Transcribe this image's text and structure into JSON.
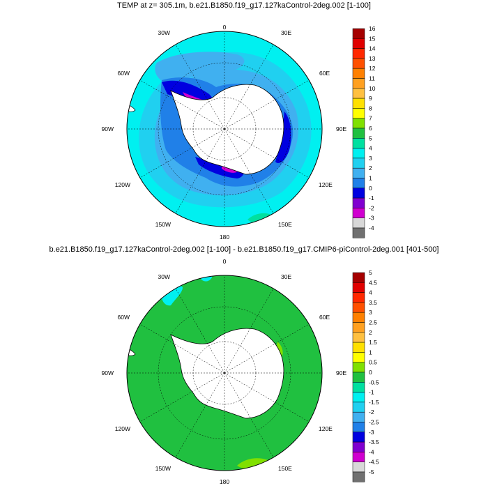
{
  "panels": [
    {
      "title": "TEMP at z= 305.1m, b.e21.B1850.f19_g17.127kaControl-2deg.002 [1-100]",
      "lon_labels": [
        "0",
        "30E",
        "60E",
        "90E",
        "120E",
        "150E",
        "180",
        "150W",
        "120W",
        "90W",
        "60W",
        "30W"
      ],
      "colorbar": {
        "labels": [
          "16",
          "15",
          "14",
          "13",
          "12",
          "11",
          "10",
          "9",
          "8",
          "7",
          "6",
          "5",
          "4",
          "3",
          "2",
          "1",
          "0",
          "-1",
          "-2",
          "-3",
          "-4"
        ],
        "colors": [
          "#a50000",
          "#e00000",
          "#ff2800",
          "#ff5000",
          "#ff8000",
          "#ffa020",
          "#ffc040",
          "#ffe000",
          "#ffff00",
          "#80e000",
          "#20c040",
          "#00e0a0",
          "#00f0f0",
          "#20d0f0",
          "#40b0f0",
          "#2080e8",
          "#0000e0",
          "#8000d0",
          "#d000d0",
          "#d8d8d8",
          "#707070"
        ]
      }
    },
    {
      "title": "b.e21.B1850.f19_g17.127kaControl-2deg.002 [1-100] - b.e21.B1850.f19_g17.CMIP6-piControl-2deg.001 [401-500]",
      "lon_labels": [
        "0",
        "30E",
        "60E",
        "90E",
        "120E",
        "150E",
        "180",
        "150W",
        "120W",
        "90W",
        "60W",
        "30W"
      ],
      "colorbar": {
        "labels": [
          "5",
          "4.5",
          "4",
          "3.5",
          "3",
          "2.5",
          "2",
          "1.5",
          "1",
          "0.5",
          "0",
          "-0.5",
          "-1",
          "-1.5",
          "-2",
          "-2.5",
          "-3",
          "-3.5",
          "-4",
          "-4.5",
          "-5"
        ],
        "colors": [
          "#a50000",
          "#e00000",
          "#ff2800",
          "#ff5000",
          "#ff8000",
          "#ffa020",
          "#ffc040",
          "#ffe000",
          "#ffff00",
          "#80e000",
          "#20c040",
          "#00e0a0",
          "#00f0f0",
          "#20d0f0",
          "#40b0f0",
          "#2080e8",
          "#0000e0",
          "#8000d0",
          "#d000d0",
          "#d8d8d8",
          "#707070"
        ]
      }
    }
  ]
}
